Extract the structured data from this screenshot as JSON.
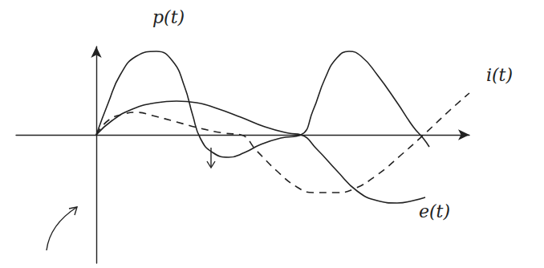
{
  "chart_data": {
    "type": "line",
    "xlim": [
      -100,
      465
    ],
    "ylim": [
      -160,
      110
    ],
    "grid": false,
    "tick_labels": false,
    "series": [
      {
        "name": "p(t)",
        "color": "#222222",
        "line_style": "solid",
        "x": [
          0,
          15,
          30,
          50,
          75,
          95,
          110,
          120,
          130,
          145,
          165,
          185,
          205,
          230,
          255,
          270,
          285,
          300,
          315,
          330,
          350,
          375,
          395,
          408,
          415
        ],
        "values": [
          0,
          40,
          75,
          98,
          104,
          92,
          60,
          25,
          -5,
          -22,
          -28,
          -22,
          -12,
          -4,
          0,
          30,
          70,
          96,
          104,
          98,
          75,
          40,
          10,
          -5,
          -15
        ]
      },
      {
        "name": "i(t)",
        "color": "#222222",
        "line_style": "dashed",
        "x": [
          0,
          15,
          35,
          50,
          70,
          100,
          130,
          160,
          180,
          200,
          225,
          250,
          270,
          300,
          320,
          350,
          380,
          408,
          440,
          465
        ],
        "values": [
          0,
          18,
          26,
          28,
          24,
          16,
          8,
          2,
          0,
          -20,
          -45,
          -65,
          -72,
          -72,
          -68,
          -50,
          -25,
          0,
          30,
          52
        ]
      },
      {
        "name": "e(t)",
        "color": "#222222",
        "line_style": "solid",
        "x": [
          0,
          20,
          45,
          75,
          100,
          125,
          150,
          180,
          210,
          240,
          255,
          275,
          300,
          325,
          350,
          375,
          395,
          410
        ],
        "values": [
          0,
          18,
          32,
          40,
          42,
          40,
          33,
          22,
          10,
          2,
          0,
          -18,
          -45,
          -70,
          -82,
          -85,
          -82,
          -78
        ]
      }
    ]
  }
}
